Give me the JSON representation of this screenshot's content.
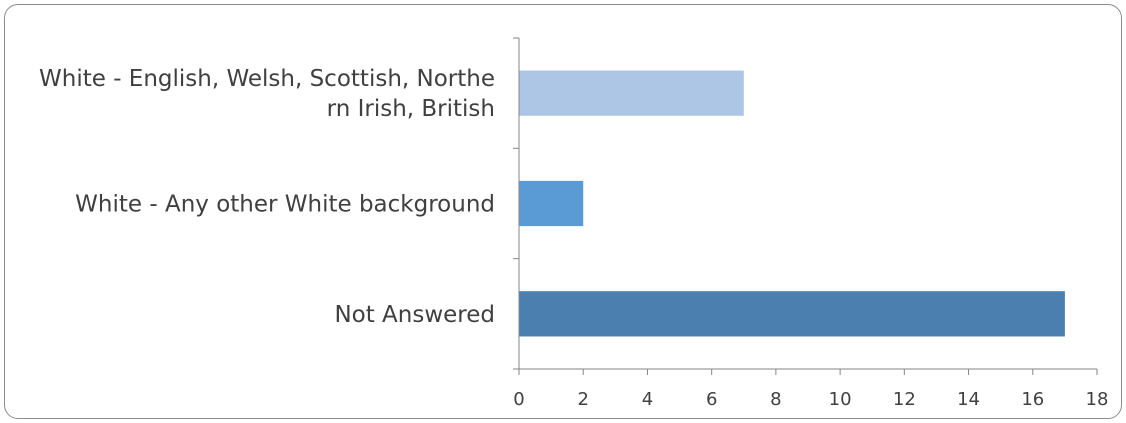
{
  "chart_data": {
    "type": "bar",
    "orientation": "horizontal",
    "title": "",
    "xlabel": "",
    "ylabel": "",
    "categories": [
      [
        "White - English, Welsh, Scottish, Northe",
        "rn Irish, British"
      ],
      [
        "White - Any other White background"
      ],
      [
        "Not Answered"
      ]
    ],
    "values": [
      7,
      2,
      17
    ],
    "colors": [
      "#adc6e5",
      "#5b9bd5",
      "#4a7fb0"
    ],
    "xlim": [
      0,
      18
    ],
    "xticks": [
      "0",
      "2",
      "4",
      "6",
      "8",
      "10",
      "12",
      "14",
      "16",
      "18"
    ],
    "grid": false,
    "legend": "none"
  }
}
